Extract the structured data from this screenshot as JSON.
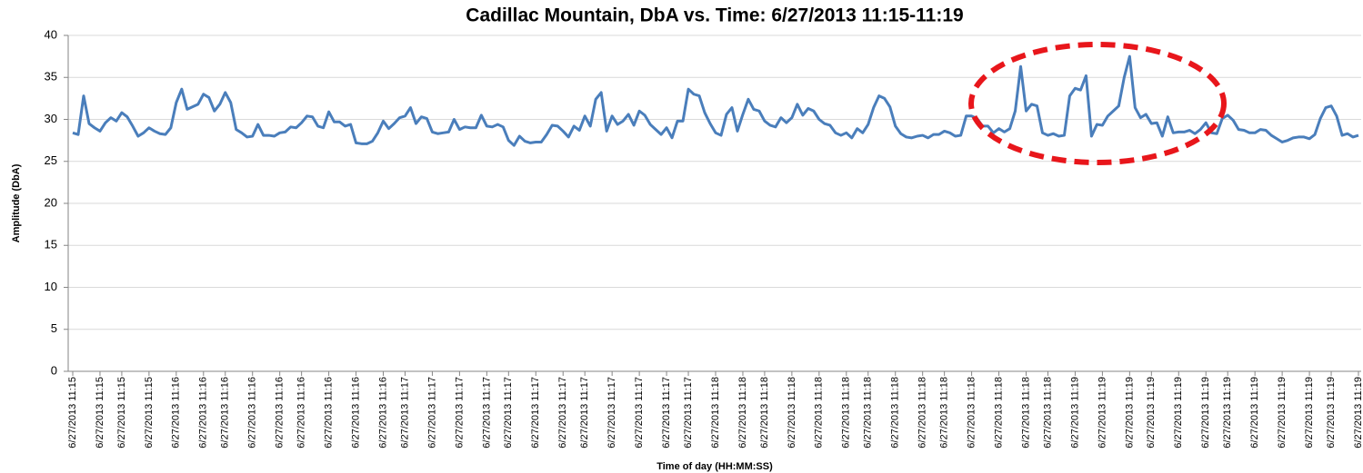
{
  "chart_data": {
    "type": "line",
    "title": "Cadillac Mountain, DbA vs. Time: 6/27/2013  11:15-11:19",
    "x_label": "Time of day (HH:MM:SS)",
    "y_label": "Amplitude (DbA)",
    "color": "#4a7ebb",
    "grid": true,
    "ylim": [
      0,
      40
    ],
    "yticks": [
      0,
      5,
      10,
      15,
      20,
      25,
      30,
      35,
      40
    ],
    "categories": [
      "6/27/2013 11:15",
      null,
      null,
      null,
      null,
      "6/27/2013 11:15",
      null,
      null,
      null,
      "6/27/2013 11:15",
      null,
      null,
      null,
      null,
      "6/27/2013 11:15",
      null,
      null,
      null,
      null,
      "6/27/2013 11:16",
      null,
      null,
      null,
      null,
      "6/27/2013 11:16",
      null,
      null,
      null,
      "6/27/2013 11:16",
      null,
      null,
      null,
      null,
      "6/27/2013 11:16",
      null,
      null,
      null,
      null,
      "6/27/2013 11:16",
      null,
      null,
      null,
      "6/27/2013 11:16",
      null,
      null,
      null,
      null,
      "6/27/2013 11:16",
      null,
      null,
      null,
      null,
      "6/27/2013 11:16",
      null,
      null,
      null,
      null,
      "6/27/2013 11:16",
      null,
      null,
      null,
      "6/27/2013 11:17",
      null,
      null,
      null,
      null,
      "6/27/2013 11:17",
      null,
      null,
      null,
      null,
      "6/27/2013 11:17",
      null,
      null,
      null,
      null,
      "6/27/2013 11:17",
      null,
      null,
      null,
      "6/27/2013 11:17",
      null,
      null,
      null,
      null,
      "6/27/2013 11:17",
      null,
      null,
      null,
      null,
      "6/27/2013 11:17",
      null,
      null,
      null,
      "6/27/2013 11:17",
      null,
      null,
      null,
      null,
      "6/27/2013 11:17",
      null,
      null,
      null,
      null,
      "6/27/2013 11:17",
      null,
      null,
      null,
      null,
      "6/27/2013 11:17",
      null,
      null,
      null,
      "6/27/2013 11:17",
      null,
      null,
      null,
      null,
      "6/27/2013 11:18",
      null,
      null,
      null,
      null,
      "6/27/2013 11:18",
      null,
      null,
      null,
      "6/27/2013 11:18",
      null,
      null,
      null,
      null,
      "6/27/2013 11:18",
      null,
      null,
      null,
      null,
      "6/27/2013 11:18",
      null,
      null,
      null,
      null,
      "6/27/2013 11:18",
      null,
      null,
      null,
      "6/27/2013 11:18",
      null,
      null,
      null,
      null,
      "6/27/2013 11:18",
      null,
      null,
      null,
      null,
      "6/27/2013 11:18",
      null,
      null,
      null,
      "6/27/2013 11:18",
      null,
      null,
      null,
      null,
      "6/27/2013 11:18",
      null,
      null,
      null,
      null,
      "6/27/2013 11:18",
      null,
      null,
      null,
      null,
      "6/27/2013 11:18",
      null,
      null,
      null,
      "6/27/2013 11:18",
      null,
      null,
      null,
      null,
      "6/27/2013 11:19",
      null,
      null,
      null,
      null,
      "6/27/2013 11:19",
      null,
      null,
      null,
      null,
      "6/27/2013 11:19",
      null,
      null,
      null,
      "6/27/2013 11:19",
      null,
      null,
      null,
      null,
      "6/27/2013 11:19",
      null,
      null,
      null,
      null,
      "6/27/2013 11:19",
      null,
      null,
      null,
      "6/27/2013 11:19",
      null,
      null,
      null,
      null,
      "6/27/2013 11:19",
      null,
      null,
      null,
      null,
      "6/27/2013 11:19",
      null,
      null,
      null,
      null,
      "6/27/2013 11:19",
      null,
      null,
      null,
      "6/27/2013 11:19",
      null,
      null,
      null,
      null,
      "6/27/2013 11:19"
    ],
    "values": [
      28.4,
      28.2,
      32.8,
      29.5,
      29,
      28.6,
      29.6,
      30.2,
      29.8,
      30.8,
      30.3,
      29.2,
      28,
      28.4,
      29,
      28.6,
      28.3,
      28.2,
      29,
      32,
      33.6,
      31.2,
      31.5,
      31.8,
      33,
      32.6,
      31,
      31.8,
      33.2,
      32,
      28.8,
      28.4,
      27.9,
      28,
      29.4,
      28.1,
      28.1,
      28,
      28.4,
      28.5,
      29.1,
      29,
      29.6,
      30.4,
      30.3,
      29.2,
      29,
      30.9,
      29.7,
      29.7,
      29.2,
      29.4,
      27.2,
      27.1,
      27.1,
      27.4,
      28.4,
      29.8,
      28.9,
      29.5,
      30.2,
      30.4,
      31.4,
      29.5,
      30.3,
      30.1,
      28.5,
      28.3,
      28.4,
      28.5,
      30,
      28.8,
      29.1,
      29,
      29,
      30.5,
      29.2,
      29.1,
      29.4,
      29.1,
      27.5,
      26.9,
      28,
      27.4,
      27.2,
      27.3,
      27.3,
      28.2,
      29.3,
      29.2,
      28.6,
      27.9,
      29.2,
      28.7,
      30.4,
      29.2,
      32.4,
      33.2,
      28.6,
      30.4,
      29.4,
      29.8,
      30.6,
      29.3,
      31,
      30.5,
      29.4,
      28.8,
      28.2,
      29,
      27.8,
      29.8,
      29.8,
      33.6,
      33,
      32.8,
      30.8,
      29.5,
      28.4,
      28.1,
      30.6,
      31.4,
      28.6,
      30.6,
      32.4,
      31.2,
      31,
      29.8,
      29.3,
      29.1,
      30.2,
      29.6,
      30.2,
      31.8,
      30.5,
      31.3,
      31,
      30,
      29.5,
      29.3,
      28.4,
      28.1,
      28.4,
      27.8,
      28.9,
      28.4,
      29.4,
      31.4,
      32.8,
      32.5,
      31.5,
      29.2,
      28.3,
      27.9,
      27.8,
      28,
      28.1,
      27.8,
      28.2,
      28.2,
      28.6,
      28.4,
      28,
      28.1,
      30.4,
      30.4,
      30.1,
      29.2,
      29.2,
      28.4,
      28.9,
      28.5,
      28.9,
      31,
      36.3,
      31,
      31.8,
      31.6,
      28.4,
      28.1,
      28.3,
      28,
      28.1,
      32.8,
      33.7,
      33.5,
      35.2,
      28,
      29.4,
      29.3,
      30.4,
      31,
      31.6,
      35,
      37.5,
      31.4,
      30.2,
      30.6,
      29.5,
      29.6,
      28,
      30.3,
      28.4,
      28.5,
      28.5,
      28.7,
      28.3,
      28.8,
      29.6,
      28.4,
      28.3,
      30.1,
      30.5,
      29.9,
      28.8,
      28.7,
      28.4,
      28.4,
      28.8,
      28.7,
      28.1,
      27.7,
      27.3,
      27.5,
      27.8,
      27.9,
      27.9,
      27.7,
      28.2,
      30.1,
      31.4,
      31.6,
      30.4,
      28.1,
      28.3,
      27.9,
      28.1
    ]
  }
}
